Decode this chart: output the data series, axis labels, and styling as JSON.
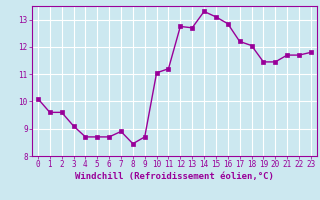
{
  "x": [
    0,
    1,
    2,
    3,
    4,
    5,
    6,
    7,
    8,
    9,
    10,
    11,
    12,
    13,
    14,
    15,
    16,
    17,
    18,
    19,
    20,
    21,
    22,
    23
  ],
  "y": [
    10.1,
    9.6,
    9.6,
    9.1,
    8.7,
    8.7,
    8.7,
    8.9,
    8.45,
    8.7,
    11.05,
    11.2,
    12.75,
    12.7,
    13.3,
    13.1,
    12.85,
    12.2,
    12.05,
    11.45,
    11.45,
    11.7,
    11.7,
    11.8
  ],
  "line_color": "#990099",
  "marker_color": "#990099",
  "bg_color": "#cce8f0",
  "grid_color": "#ffffff",
  "xlabel": "Windchill (Refroidissement éolien,°C)",
  "ylim": [
    8,
    13.5
  ],
  "xlim": [
    -0.5,
    23.5
  ],
  "yticks": [
    8,
    9,
    10,
    11,
    12,
    13
  ],
  "xticks": [
    0,
    1,
    2,
    3,
    4,
    5,
    6,
    7,
    8,
    9,
    10,
    11,
    12,
    13,
    14,
    15,
    16,
    17,
    18,
    19,
    20,
    21,
    22,
    23
  ],
  "tick_fontsize": 5.5,
  "xlabel_fontsize": 6.5,
  "line_width": 1.0,
  "marker_size": 2.5
}
